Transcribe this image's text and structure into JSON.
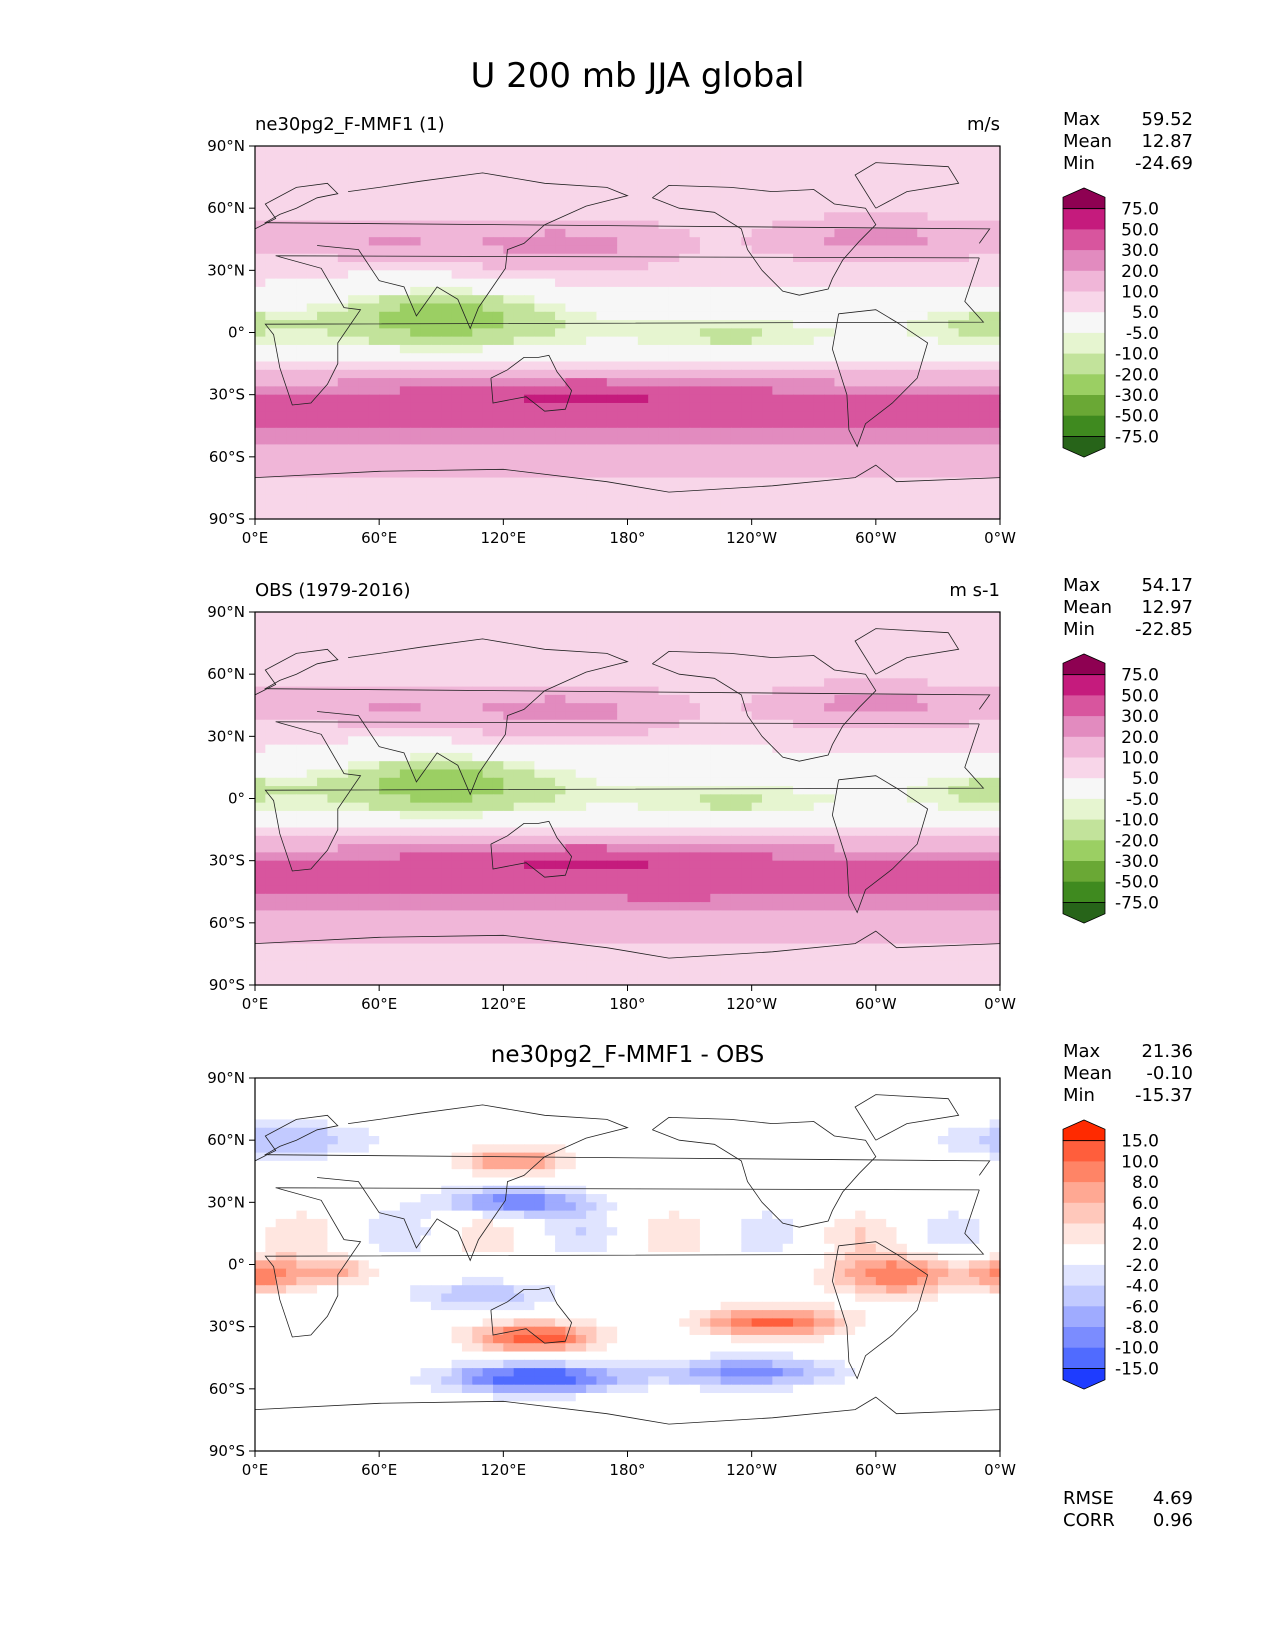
{
  "figure": {
    "title": "U 200 mb JJA global"
  },
  "lat_ticks": [
    "90°N",
    "60°N",
    "30°N",
    "0°",
    "30°S",
    "60°S",
    "90°S"
  ],
  "lon_ticks": [
    "0°E",
    "60°E",
    "120°E",
    "180°",
    "120°W",
    "60°W",
    "0°W"
  ],
  "panels": [
    {
      "left_title": "ne30pg2_F-MMF1 (1)",
      "right_title": "m/s",
      "center_title": "",
      "stats": {
        "max_label": "Max",
        "max": "59.52",
        "mean_label": "Mean",
        "mean": "12.87",
        "min_label": "Min",
        "min": "-24.69"
      }
    },
    {
      "left_title": "OBS (1979-2016)",
      "right_title": "m s-1",
      "center_title": "",
      "stats": {
        "max_label": "Max",
        "max": "54.17",
        "mean_label": "Mean",
        "mean": "12.97",
        "min_label": "Min",
        "min": "-22.85"
      }
    },
    {
      "left_title": "",
      "right_title": "",
      "center_title": "ne30pg2_F-MMF1 - OBS",
      "stats": {
        "max_label": "Max",
        "max": "21.36",
        "mean_label": "Mean",
        "mean": "-0.10",
        "min_label": "Min",
        "min": "-15.37"
      },
      "footer": {
        "rmse_label": "RMSE",
        "rmse": "4.69",
        "corr_label": "CORR",
        "corr": "0.96"
      }
    }
  ],
  "colorbars": {
    "field": {
      "labels": [
        "75.0",
        "50.0",
        "30.0",
        "20.0",
        "10.0",
        "5.0",
        "-5.0",
        "-10.0",
        "-20.0",
        "-30.0",
        "-50.0",
        "-75.0"
      ],
      "colors": [
        "#8e0152",
        "#c51b7d",
        "#d8559e",
        "#e28bbf",
        "#f0b6d8",
        "#f8d6e9",
        "#f7f7f7",
        "#e6f5d0",
        "#c2e39b",
        "#9bcf63",
        "#6aa835",
        "#3f8a1f",
        "#276419"
      ]
    },
    "diff": {
      "labels": [
        "15.0",
        "10.0",
        "8.0",
        "6.0",
        "4.0",
        "2.0",
        "-2.0",
        "-4.0",
        "-6.0",
        "-8.0",
        "-10.0",
        "-15.0"
      ],
      "colors": [
        "#ff2a00",
        "#ff5e3c",
        "#ff8466",
        "#ffa893",
        "#ffc8bb",
        "#ffe6e0",
        "#ffffff",
        "#e0e4ff",
        "#c2caff",
        "#9fabff",
        "#7b8cff",
        "#506bff",
        "#1e3cff"
      ]
    }
  },
  "chart_data": [
    {
      "type": "heatmap",
      "title": "ne30pg2_F-MMF1 (1)",
      "units": "m/s",
      "variable": "U 200 mb JJA",
      "x_range": [
        0,
        360
      ],
      "y_range": [
        -90,
        90
      ],
      "stats": {
        "max": 59.52,
        "mean": 12.87,
        "min": -24.69
      },
      "contour_levels": [
        -75,
        -50,
        -30,
        -20,
        -10,
        -5,
        5,
        10,
        20,
        30,
        50,
        75
      ],
      "colormap": "PiYG_r"
    },
    {
      "type": "heatmap",
      "title": "OBS (1979-2016)",
      "units": "m s-1",
      "variable": "U 200 mb JJA",
      "x_range": [
        0,
        360
      ],
      "y_range": [
        -90,
        90
      ],
      "stats": {
        "max": 54.17,
        "mean": 12.97,
        "min": -22.85
      },
      "contour_levels": [
        -75,
        -50,
        -30,
        -20,
        -10,
        -5,
        5,
        10,
        20,
        30,
        50,
        75
      ],
      "colormap": "PiYG_r"
    },
    {
      "type": "heatmap",
      "title": "ne30pg2_F-MMF1 - OBS",
      "variable": "U 200 mb JJA difference",
      "x_range": [
        0,
        360
      ],
      "y_range": [
        -90,
        90
      ],
      "stats": {
        "max": 21.36,
        "mean": -0.1,
        "min": -15.37,
        "rmse": 4.69,
        "corr": 0.96
      },
      "contour_levels": [
        -15,
        -10,
        -8,
        -6,
        -4,
        -2,
        2,
        4,
        6,
        8,
        10,
        15
      ],
      "colormap": "bwr"
    }
  ]
}
